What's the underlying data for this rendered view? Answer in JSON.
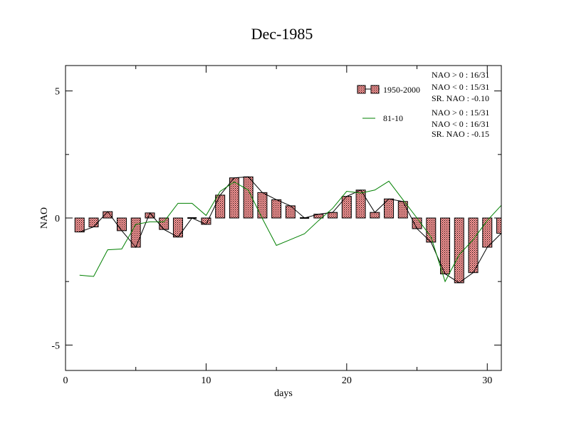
{
  "chart_data": {
    "type": "bar",
    "title": "Dec-1985",
    "xlabel": "days",
    "ylabel": "NAO",
    "xlim": [
      0,
      31
    ],
    "ylim": [
      -6,
      6
    ],
    "xticks": [
      0,
      10,
      20,
      30
    ],
    "yticks": [
      5,
      0,
      -5
    ],
    "ytick_labels": [
      "5",
      "0",
      "-5"
    ],
    "grid": false,
    "legend_placement": "top-right",
    "series": [
      {
        "name": "1950-2000",
        "kind": "bar",
        "color": "#ff9999",
        "pattern": "hatched",
        "x": [
          1,
          2,
          3,
          4,
          5,
          6,
          7,
          8,
          9,
          10,
          11,
          12,
          13,
          14,
          15,
          16,
          17,
          18,
          19,
          20,
          21,
          22,
          23,
          24,
          25,
          26,
          27,
          28,
          29,
          30,
          31
        ],
        "values": [
          -0.55,
          -0.35,
          0.25,
          -0.5,
          -1.15,
          0.2,
          -0.45,
          -0.75,
          0.0,
          -0.25,
          0.9,
          1.58,
          1.62,
          1.0,
          0.72,
          0.48,
          0.0,
          0.15,
          0.22,
          0.85,
          1.1,
          0.22,
          0.75,
          0.65,
          -0.42,
          -0.95,
          -2.2,
          -2.55,
          -2.15,
          -1.15,
          -0.6
        ]
      },
      {
        "name": "81-10",
        "kind": "line",
        "color": "#008000",
        "x": [
          1,
          2,
          3,
          4,
          5,
          6,
          7,
          8,
          9,
          10,
          11,
          12,
          13,
          14,
          15,
          16,
          17,
          18,
          19,
          20,
          21,
          22,
          23,
          24,
          25,
          26,
          27,
          28,
          29,
          30,
          31
        ],
        "values": [
          -2.25,
          -2.3,
          -1.25,
          -1.22,
          -0.25,
          -0.15,
          -0.15,
          0.58,
          0.58,
          0.1,
          1.05,
          1.42,
          1.1,
          -0.02,
          -1.08,
          -0.85,
          -0.62,
          -0.1,
          0.38,
          1.05,
          0.98,
          1.1,
          1.45,
          0.72,
          0.0,
          -0.75,
          -2.5,
          -1.45,
          -0.85,
          -0.1,
          0.5
        ]
      }
    ],
    "annotations": {
      "group1": [
        "NAO > 0 : 16/31",
        "NAO < 0 : 15/31",
        "SR. NAO : -0.10"
      ],
      "group2": [
        "NAO > 0 : 15/31",
        "NAO < 0 : 16/31",
        "SR. NAO : -0.15"
      ]
    }
  }
}
